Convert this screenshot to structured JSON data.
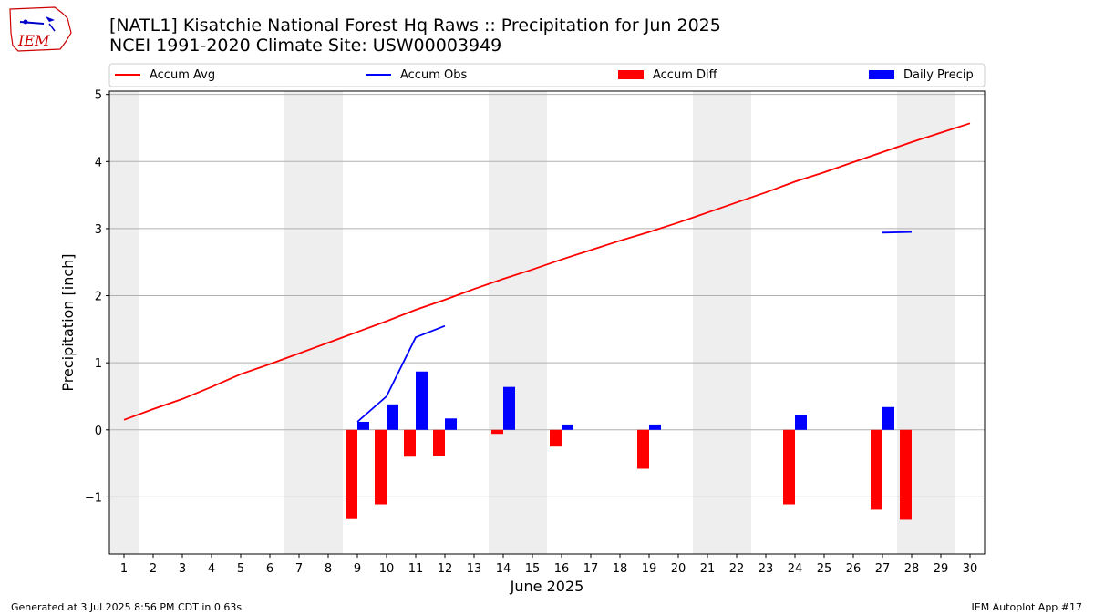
{
  "header": {
    "title_line1": "[NATL1] Kisatchie National Forest Hq Raws :: Precipitation for Jun 2025",
    "title_line2": "NCEI 1991-2020 Climate Site: USW00003949",
    "logo_text": "IEM"
  },
  "footer": {
    "left": "Generated at 3 Jul 2025 8:56 PM CDT in 0.63s",
    "right": "IEM Autoplot App #17"
  },
  "chart_data": {
    "type": "bar",
    "xlabel": "June 2025",
    "ylabel": "Precipitation [inch]",
    "xlim": [
      0.5,
      30.5
    ],
    "ylim": [
      -1.85,
      5.05
    ],
    "x_ticks": [
      1,
      2,
      3,
      4,
      5,
      6,
      7,
      8,
      9,
      10,
      11,
      12,
      13,
      14,
      15,
      16,
      17,
      18,
      19,
      20,
      21,
      22,
      23,
      24,
      25,
      26,
      27,
      28,
      29,
      30
    ],
    "y_ticks": [
      -1,
      0,
      1,
      2,
      3,
      4,
      5
    ],
    "weekend_shading": [
      [
        0.5,
        1.5
      ],
      [
        6.5,
        8.5
      ],
      [
        13.5,
        15.5
      ],
      [
        20.5,
        22.5
      ],
      [
        27.5,
        29.5
      ]
    ],
    "grid": "horizontal",
    "legend_position": "top",
    "legend": [
      "Accum Avg",
      "Accum Obs",
      "Accum Diff",
      "Daily Precip"
    ],
    "series": [
      {
        "name": "Accum Avg",
        "kind": "line",
        "color": "#ff0000",
        "x": [
          1,
          2,
          3,
          4,
          5,
          6,
          7,
          8,
          9,
          10,
          11,
          12,
          13,
          14,
          15,
          16,
          17,
          18,
          19,
          20,
          21,
          22,
          23,
          24,
          25,
          26,
          27,
          28,
          29,
          30
        ],
        "values": [
          0.15,
          0.31,
          0.46,
          0.64,
          0.83,
          0.98,
          1.14,
          1.3,
          1.46,
          1.62,
          1.79,
          1.94,
          2.1,
          2.25,
          2.39,
          2.54,
          2.68,
          2.82,
          2.95,
          3.09,
          3.24,
          3.39,
          3.54,
          3.7,
          3.84,
          3.99,
          4.14,
          4.29,
          4.43,
          4.57
        ]
      },
      {
        "name": "Accum Obs",
        "kind": "line",
        "color": "#0000ff",
        "x": [
          9,
          10,
          11,
          12,
          null,
          27,
          28
        ],
        "values": [
          0.12,
          0.5,
          1.38,
          1.55,
          null,
          2.94,
          2.95
        ]
      },
      {
        "name": "Accum Diff",
        "kind": "bar",
        "color": "#ff0000",
        "x": [
          9,
          10,
          11,
          12,
          14,
          16,
          19,
          24,
          27,
          28
        ],
        "values": [
          -1.33,
          -1.11,
          -0.4,
          -0.39,
          -0.06,
          -0.25,
          -0.58,
          -1.11,
          -1.19,
          -1.34
        ]
      },
      {
        "name": "Daily Precip",
        "kind": "bar",
        "color": "#0000ff",
        "x": [
          9,
          10,
          11,
          12,
          14,
          16,
          19,
          24,
          27
        ],
        "values": [
          0.12,
          0.38,
          0.87,
          0.17,
          0.64,
          0.08,
          0.08,
          0.22,
          0.34
        ]
      }
    ]
  }
}
